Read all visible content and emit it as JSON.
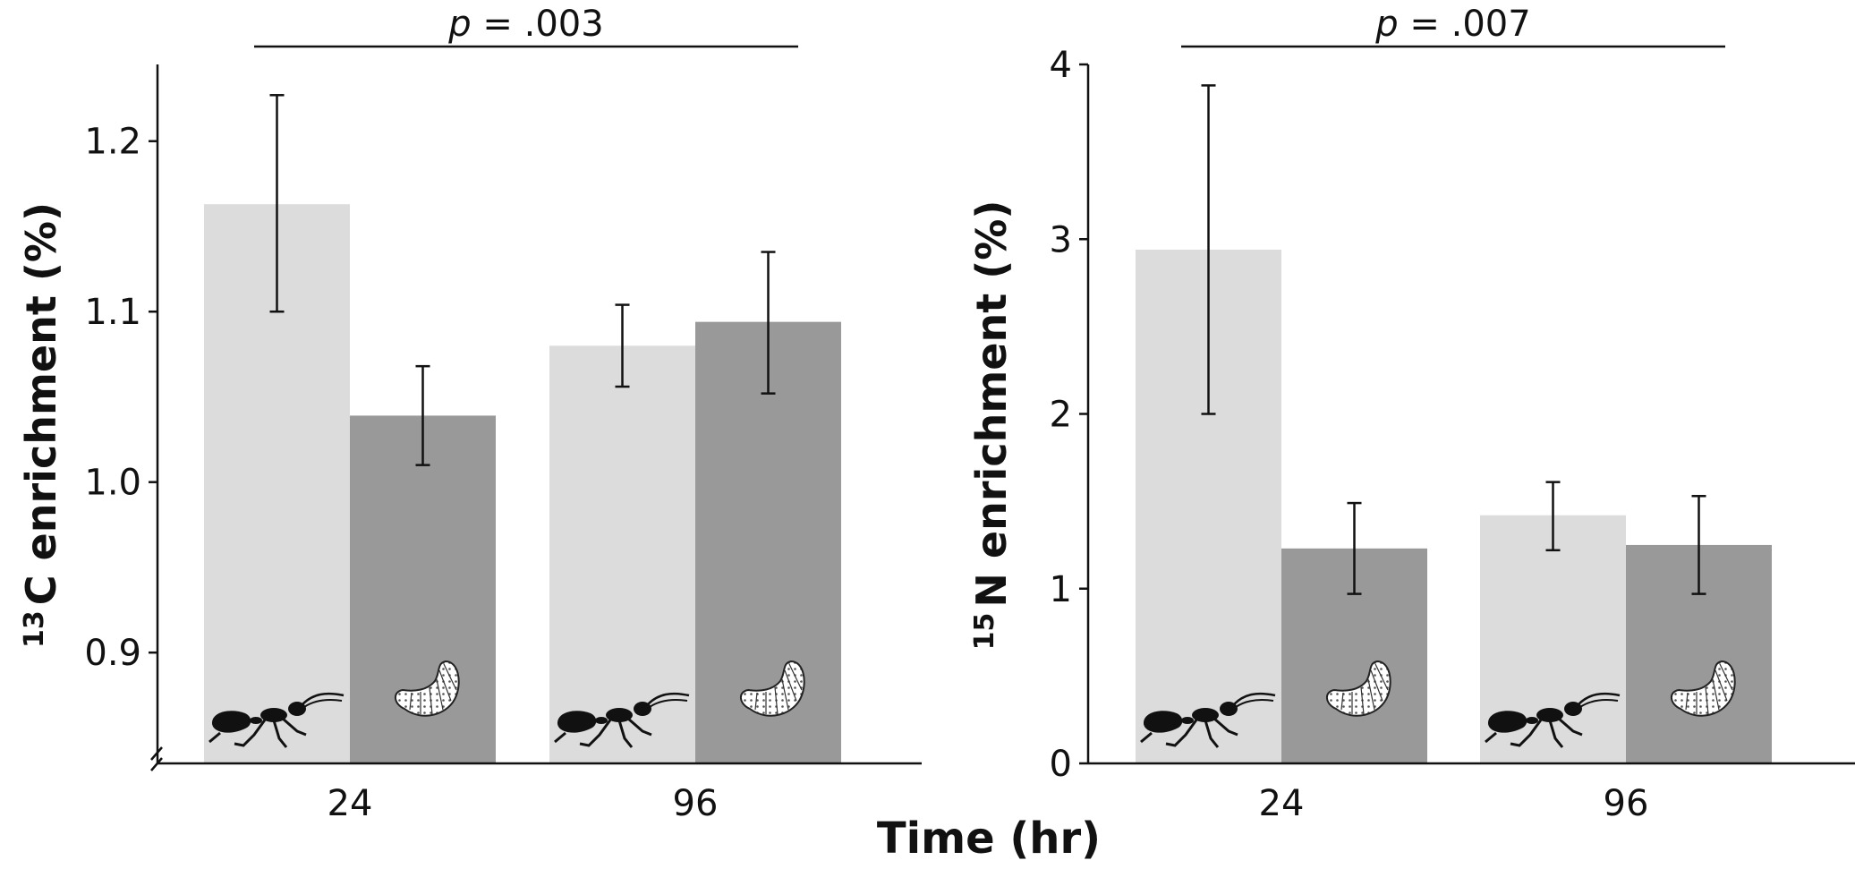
{
  "figure": {
    "xlabel": "Time (hr)"
  },
  "colors": {
    "worker": "#dcdcdc",
    "larva": "#999999",
    "axis": "#111111"
  },
  "icons": {
    "worker": "ant-icon",
    "larva": "larva-icon"
  },
  "chart_data": [
    {
      "type": "bar",
      "panel": "left",
      "ylabel_sup": "13",
      "ylabel_rest": "C enrichment (%)",
      "categories": [
        "24",
        "96"
      ],
      "series": [
        {
          "group": "worker",
          "values": [
            1.163,
            1.08
          ],
          "errors": [
            [
              1.1,
              1.227
            ],
            [
              1.056,
              1.104
            ]
          ]
        },
        {
          "group": "larva",
          "values": [
            1.039,
            1.094
          ],
          "errors": [
            [
              1.01,
              1.068
            ],
            [
              1.052,
              1.135
            ]
          ]
        }
      ],
      "ylim": [
        0.835,
        1.245
      ],
      "yticks": [
        0.9,
        1.0,
        1.1,
        1.2
      ],
      "ytick_labels": [
        "0.9",
        "1.0",
        "1.1",
        "1.2"
      ],
      "axis_break": true,
      "annotation": {
        "prefix": "p",
        "text": " = .003"
      },
      "grid": false
    },
    {
      "type": "bar",
      "panel": "right",
      "ylabel_sup": "15",
      "ylabel_rest": "N enrichment (%)",
      "categories": [
        "24",
        "96"
      ],
      "series": [
        {
          "group": "worker",
          "values": [
            2.94,
            1.42
          ],
          "errors": [
            [
              2.0,
              3.88
            ],
            [
              1.22,
              1.61
            ]
          ]
        },
        {
          "group": "larva",
          "values": [
            1.23,
            1.25
          ],
          "errors": [
            [
              0.97,
              1.49
            ],
            [
              0.97,
              1.53
            ]
          ]
        }
      ],
      "ylim": [
        0,
        4
      ],
      "yticks": [
        0,
        1,
        2,
        3,
        4
      ],
      "ytick_labels": [
        "0",
        "1",
        "2",
        "3",
        "4"
      ],
      "axis_break": false,
      "annotation": {
        "prefix": "p",
        "text": " = .007"
      },
      "grid": false
    }
  ]
}
